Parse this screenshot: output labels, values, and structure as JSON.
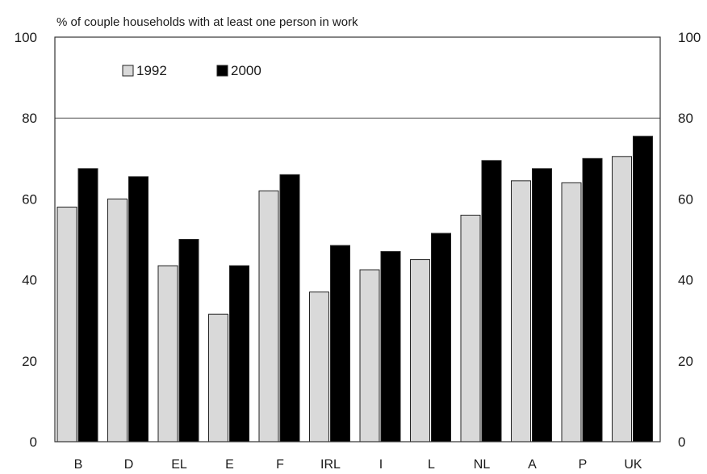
{
  "chart_data": {
    "type": "bar",
    "title": "% of couple households with at least one person in work",
    "xlabel": "",
    "ylabel": "",
    "categories": [
      "B",
      "D",
      "EL",
      "E",
      "F",
      "IRL",
      "I",
      "L",
      "NL",
      "A",
      "P",
      "UK"
    ],
    "series": [
      {
        "name": "1992",
        "color": "#d9d9d9",
        "values": [
          58,
          60,
          43.5,
          31.5,
          62,
          37,
          42.5,
          45,
          56,
          64.5,
          64,
          70.5
        ]
      },
      {
        "name": "2000",
        "color": "#000000",
        "values": [
          67.5,
          65.5,
          50,
          43.5,
          66,
          48.5,
          47,
          51.5,
          69.5,
          67.5,
          70,
          75.5
        ]
      }
    ],
    "ylim": [
      0,
      100
    ],
    "yticks": [
      0,
      20,
      40,
      60,
      80,
      100
    ],
    "secondary_y_axis": true,
    "grid": "horizontal at 80",
    "legend_position": "top-left"
  }
}
